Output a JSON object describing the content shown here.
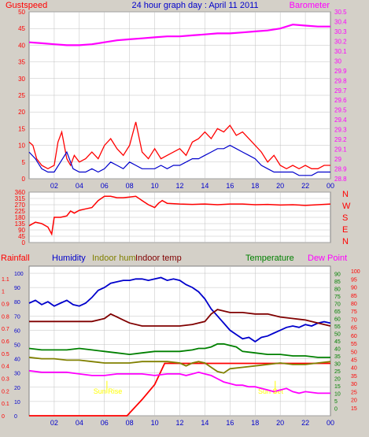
{
  "header": {
    "left_label": "Gustspeed",
    "title": "24 hour graph day : April 11 2011",
    "right_label": "Barometer"
  },
  "colors": {
    "background": "#d4d0c8",
    "plot_bg": "#ffffff",
    "gust": "#ff0000",
    "wind": "#0000cc",
    "barometer": "#ff00ff",
    "direction": "#ff0000",
    "rain": "#ff0000",
    "humidity": "#0000cc",
    "indoor_hum": "#808000",
    "indoor_temp": "#800000",
    "temperature": "#008000",
    "dew_point": "#ff00ff",
    "sun": "#ffff00",
    "grid": "#c0c0c0"
  },
  "x_ticks": [
    "02",
    "04",
    "06",
    "08",
    "10",
    "12",
    "14",
    "16",
    "18",
    "20",
    "22",
    "00"
  ],
  "compass": [
    "N",
    "W",
    "S",
    "E",
    "N"
  ],
  "annotations": {
    "sun_rise": "Sun Rise",
    "sun_set": "Sun Set"
  },
  "chart_data": [
    {
      "type": "line",
      "name": "wind",
      "title": "24 hour graph day : April 11 2011",
      "x_range_hours": [
        0,
        24
      ],
      "left_axis": {
        "label": "Gustspeed",
        "ylim": [
          0,
          50
        ],
        "ticks": [
          0,
          5,
          10,
          15,
          20,
          25,
          30,
          35,
          40,
          45,
          50
        ]
      },
      "right_axis": {
        "label": "Barometer",
        "ylim": [
          28.8,
          30.5
        ],
        "ticks": [
          "28.8",
          "28.9",
          "29",
          "29.1",
          "29.2",
          "29.3",
          "29.4",
          "29.5",
          "29.6",
          "29.7",
          "29.8",
          "29.9",
          "30",
          "30.1",
          "30.2",
          "30.3",
          "30.4",
          "30.5"
        ]
      },
      "series": [
        {
          "name": "Gustspeed",
          "axis": "left",
          "x": [
            0,
            0.3,
            0.6,
            1,
            1.5,
            2,
            2.3,
            2.6,
            3,
            3.3,
            3.6,
            4,
            4.5,
            5,
            5.5,
            6,
            6.5,
            7,
            7.5,
            8,
            8.5,
            9,
            9.5,
            10,
            10.5,
            11,
            11.5,
            12,
            12.5,
            13,
            13.5,
            14,
            14.5,
            15,
            15.5,
            16,
            16.5,
            17,
            17.5,
            18,
            18.5,
            19,
            19.5,
            20,
            20.5,
            21,
            21.5,
            22,
            22.5,
            23,
            23.5,
            24
          ],
          "values": [
            11,
            10,
            6,
            4,
            3,
            4,
            11,
            14,
            6,
            4,
            7,
            5,
            6,
            8,
            6,
            10,
            12,
            9,
            7,
            10,
            17,
            8,
            6,
            9,
            6,
            7,
            8,
            9,
            7,
            11,
            12,
            14,
            12,
            15,
            14,
            16,
            13,
            14,
            12,
            10,
            8,
            5,
            7,
            4,
            3,
            4,
            3,
            4,
            3,
            3,
            4,
            4
          ]
        },
        {
          "name": "Windspeed",
          "axis": "left",
          "x": [
            0,
            0.5,
            1,
            1.5,
            2,
            2.5,
            3,
            3.5,
            4,
            4.5,
            5,
            5.5,
            6,
            6.5,
            7,
            7.5,
            8,
            8.5,
            9,
            9.5,
            10,
            10.5,
            11,
            11.5,
            12,
            12.5,
            13,
            13.5,
            14,
            14.5,
            15,
            15.5,
            16,
            16.5,
            17,
            17.5,
            18,
            18.5,
            19,
            19.5,
            20,
            20.5,
            21,
            21.5,
            22,
            22.5,
            23,
            23.5,
            24
          ],
          "values": [
            8,
            6,
            3,
            2,
            2,
            5,
            8,
            3,
            2,
            2,
            3,
            2,
            3,
            5,
            4,
            3,
            5,
            4,
            3,
            3,
            3,
            4,
            3,
            4,
            4,
            5,
            6,
            6,
            7,
            8,
            9,
            9,
            10,
            9,
            8,
            7,
            6,
            4,
            3,
            2,
            2,
            2,
            2,
            1,
            1,
            1,
            2,
            2,
            2
          ]
        },
        {
          "name": "Barometer",
          "axis": "right",
          "x": [
            0,
            1,
            2,
            3,
            4,
            5,
            6,
            7,
            8,
            9,
            10,
            11,
            12,
            13,
            14,
            15,
            16,
            17,
            18,
            19,
            20,
            21,
            22,
            23,
            24
          ],
          "values": [
            30.19,
            30.18,
            30.17,
            30.16,
            30.16,
            30.17,
            30.19,
            30.21,
            30.22,
            30.23,
            30.24,
            30.25,
            30.25,
            30.26,
            30.27,
            30.28,
            30.28,
            30.29,
            30.3,
            30.31,
            30.33,
            30.37,
            30.36,
            30.35,
            30.35
          ]
        }
      ]
    },
    {
      "type": "line",
      "name": "direction",
      "x_range_hours": [
        0,
        24
      ],
      "left_axis": {
        "ylim": [
          0,
          360
        ],
        "ticks": [
          0,
          45,
          90,
          135,
          180,
          225,
          270,
          315,
          360
        ]
      },
      "series": [
        {
          "name": "Wind direction",
          "x": [
            0,
            0.5,
            1,
            1.5,
            1.8,
            2,
            2.5,
            3,
            3.3,
            3.6,
            4,
            4.5,
            5,
            5.5,
            6,
            6.5,
            7,
            7.5,
            8,
            8.5,
            9,
            9.5,
            10,
            10.3,
            10.6,
            11,
            12,
            13,
            14,
            15,
            16,
            17,
            18,
            19,
            20,
            21,
            22,
            23,
            24
          ],
          "values": [
            120,
            145,
            135,
            110,
            60,
            180,
            180,
            190,
            225,
            210,
            230,
            240,
            250,
            300,
            330,
            330,
            320,
            320,
            325,
            330,
            300,
            270,
            250,
            280,
            300,
            280,
            275,
            272,
            275,
            270,
            275,
            275,
            270,
            272,
            268,
            270,
            265,
            270,
            275
          ]
        }
      ]
    },
    {
      "type": "line",
      "name": "climate",
      "x_range_hours": [
        0,
        24
      ],
      "axes": [
        {
          "label": "Rainfall",
          "ylim": [
            0,
            1.2
          ],
          "ticks": [
            "0",
            "0.1",
            "0.2",
            "0.3",
            "0.4",
            "0.5",
            "0.6",
            "0.7",
            "0.8",
            "0.9",
            "1",
            "1.1"
          ]
        },
        {
          "label": "Humidity",
          "ylim": [
            0,
            105
          ],
          "ticks": [
            0,
            10,
            20,
            30,
            40,
            50,
            60,
            70,
            80,
            90,
            100
          ]
        },
        {
          "label": "Temperature",
          "ylim": [
            -5,
            95
          ],
          "ticks": [
            0,
            5,
            10,
            15,
            20,
            25,
            30,
            35,
            40,
            45,
            50,
            55,
            60,
            65,
            70,
            75,
            80,
            85,
            90
          ]
        },
        {
          "label": "Dew Point",
          "ylim": [
            10,
            103
          ],
          "ticks": [
            15,
            20,
            25,
            30,
            35,
            40,
            45,
            50,
            55,
            60,
            65,
            70,
            75,
            80,
            85,
            90,
            95,
            100
          ]
        }
      ],
      "legend": [
        "Rainfall",
        "Humidity",
        "Indoor hum",
        "Indoor temp",
        "Temperature",
        "Dew Point"
      ],
      "series": [
        {
          "name": "Rainfall",
          "axis": 0,
          "x": [
            0,
            7.8,
            9,
            10,
            10.8,
            24
          ],
          "values": [
            0,
            0,
            0.13,
            0.25,
            0.42,
            0.42
          ]
        },
        {
          "name": "Humidity",
          "axis": 1,
          "x": [
            0,
            0.5,
            1,
            1.5,
            2,
            2.5,
            3,
            3.5,
            4,
            4.5,
            5,
            5.5,
            6,
            6.5,
            7,
            7.5,
            8,
            8.5,
            9,
            9.5,
            10,
            10.5,
            11,
            11.5,
            12,
            12.5,
            13,
            13.5,
            14,
            14.5,
            15,
            15.5,
            16,
            16.5,
            17,
            17.5,
            18,
            18.5,
            19,
            19.5,
            20,
            20.5,
            21,
            21.5,
            22,
            22.5,
            23,
            23.5,
            24
          ],
          "values": [
            79,
            81,
            78,
            80,
            77,
            79,
            81,
            78,
            77,
            79,
            83,
            88,
            90,
            93,
            94,
            95,
            95,
            96,
            96,
            95,
            96,
            97,
            95,
            96,
            95,
            92,
            90,
            87,
            82,
            75,
            70,
            65,
            60,
            57,
            54,
            55,
            52,
            55,
            56,
            58,
            60,
            62,
            63,
            62,
            64,
            63,
            65,
            66,
            65
          ]
        },
        {
          "name": "Indoor hum",
          "axis": 1,
          "x": [
            0,
            1,
            2,
            3,
            4,
            5,
            6,
            7,
            8,
            9,
            10,
            11,
            12,
            12.5,
            13,
            13.5,
            14,
            14.5,
            15,
            15.5,
            16,
            17,
            18,
            19,
            20,
            21,
            22,
            23,
            24
          ],
          "values": [
            41,
            40,
            40,
            39,
            39,
            38,
            37,
            37,
            37,
            38,
            38,
            38,
            37,
            35,
            37,
            38,
            37,
            34,
            31,
            30,
            33,
            34,
            35,
            36,
            37,
            36,
            36,
            37,
            38
          ]
        },
        {
          "name": "Indoor temp",
          "axis": 2,
          "x": [
            0,
            1,
            2,
            3,
            4,
            5,
            6,
            6.5,
            7,
            7.5,
            8,
            9,
            10,
            11,
            12,
            13,
            14,
            14.5,
            15,
            15.5,
            16,
            17,
            18,
            19,
            20,
            21,
            22,
            23,
            24
          ],
          "values": [
            58,
            58,
            58,
            58,
            58,
            58,
            60,
            63,
            61,
            59,
            57,
            55,
            55,
            55,
            55,
            56,
            58,
            63,
            66,
            65,
            64,
            64,
            63,
            63,
            61,
            60,
            59,
            57,
            55
          ]
        },
        {
          "name": "Temperature",
          "axis": 2,
          "x": [
            0,
            1,
            2,
            3,
            4,
            5,
            6,
            7,
            8,
            9,
            10,
            11,
            12,
            13,
            13.5,
            14,
            14.5,
            15,
            15.5,
            16,
            16.5,
            17,
            18,
            19,
            20,
            21,
            22,
            23,
            24
          ],
          "values": [
            40,
            39,
            39,
            39,
            40,
            39,
            38,
            37,
            36,
            37,
            38,
            38,
            38,
            39,
            40,
            40,
            41,
            43,
            43,
            42,
            41,
            38,
            37,
            36,
            36,
            35,
            35,
            34,
            34
          ]
        },
        {
          "name": "Dew Point",
          "axis": 3,
          "x": [
            0,
            1,
            2,
            3,
            4,
            5,
            6,
            7,
            8,
            9,
            10,
            11,
            12,
            12.5,
            13,
            13.5,
            14,
            14.5,
            15,
            15.5,
            16,
            16.5,
            17,
            17.5,
            18,
            18.5,
            19,
            19.5,
            20,
            20.5,
            21,
            21.5,
            22,
            23,
            24
          ],
          "values": [
            38,
            37,
            37,
            37,
            36,
            35,
            35,
            36,
            36,
            36,
            35,
            36,
            36,
            35,
            36,
            37,
            36,
            35,
            33,
            31,
            30,
            29,
            29,
            28,
            28,
            27,
            26,
            25,
            26,
            27,
            25,
            24,
            25,
            24,
            24
          ]
        },
        {
          "name": "Sun Rise",
          "axis": 0,
          "x": [
            6.2,
            6.2
          ],
          "values": [
            0.18,
            0.28
          ]
        },
        {
          "name": "Sun Set",
          "axis": 0,
          "x": [
            19.6,
            19.6
          ],
          "values": [
            0.18,
            0.28
          ]
        }
      ]
    }
  ]
}
